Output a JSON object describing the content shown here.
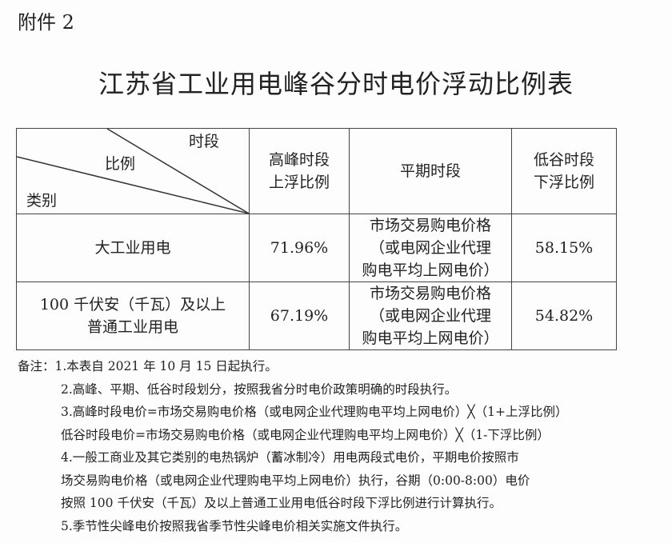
{
  "attachment_label": "附件 2",
  "title": "江苏省工业用电峰谷分时电价浮动比例表",
  "table": {
    "header": {
      "corner_top": "时段",
      "corner_middle": "比例",
      "corner_bottom": "类别",
      "peak": [
        "高峰时段",
        "上浮比例"
      ],
      "flat": "平期时段",
      "valley": [
        "低谷时段",
        "下浮比例"
      ]
    },
    "rows": [
      {
        "category": [
          "大工业用电"
        ],
        "peak": "71.96%",
        "flat": [
          "市场交易购电价格",
          "（或电网企业代理",
          "购电平均上网电价）"
        ],
        "valley": "58.15%"
      },
      {
        "category": [
          "100 千伏安（千瓦）及以上",
          "普通工业用电"
        ],
        "peak": "67.19%",
        "flat": [
          "市场交易购电价格",
          "（或电网企业代理",
          "购电平均上网电价）"
        ],
        "valley": "54.82%"
      }
    ]
  },
  "notes": [
    "备注：1.本表自 2021 年 10 月 15 日起执行。",
    "2.高峰、平期、低谷时段划分，按照我省分时电价政策明确的时段执行。",
    "3.高峰时段电价=市场交易购电价格（或电网企业代理购电平均上网电价）╳（1+上浮比例）",
    "低谷时段电价=市场交易购电价格（或电网企业代理购电平均上网电价）╳（1-下浮比例）",
    "4.一般工商业及其它类别的电热锅炉（蓄冰制冷）用电两段式电价，平期电价按照市",
    "场交易购电价格（或电网企业代理购电平均上网电价）执行，谷期（0:00-8:00）电价",
    "按照 100 千伏安（千瓦）及以上普通工业用电低谷时段下浮比例进行计算执行。",
    "5.季节性尖峰电价按照我省季节性尖峰电价相关实施文件执行。"
  ]
}
